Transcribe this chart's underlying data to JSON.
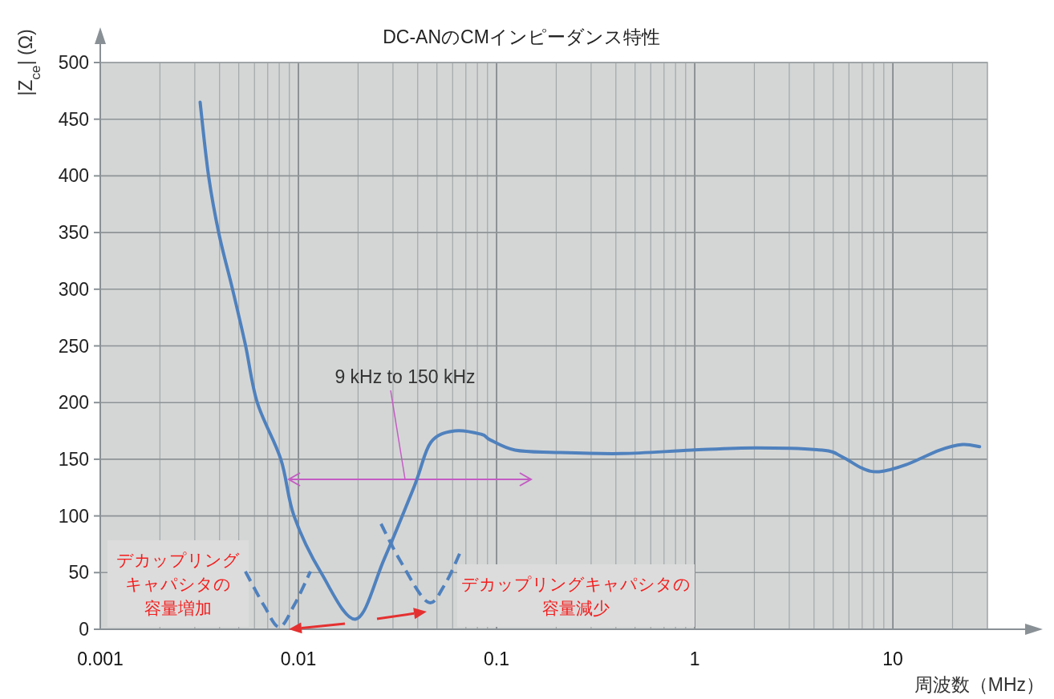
{
  "chart_data": {
    "type": "line",
    "title": "DC-ANのCMインピーダンス特性",
    "xlabel": "周波数（MHz）",
    "ylabel": "|Z$_{ce}$| (Ω)",
    "log": "x",
    "xlim": [
      0.001,
      30
    ],
    "xticks": [
      0.001,
      0.01,
      0.1,
      1,
      10
    ],
    "ylim": [
      0,
      500
    ],
    "yticks": [
      0,
      50,
      100,
      150,
      200,
      250,
      300,
      350,
      400,
      450,
      500
    ],
    "grid": true,
    "line_style": "solid",
    "series": [
      {
        "color": "#4f81bd",
        "x": [
          0.00319,
          0.00352,
          0.00397,
          0.00465,
          0.0054,
          0.0062,
          0.00815,
          0.0095,
          0.013,
          0.0195,
          0.0271,
          0.0386,
          0.0466,
          0.0615,
          0.0838,
          0.093,
          0.124,
          0.198,
          0.427,
          0.964,
          2.03,
          4.4,
          5.56,
          7.02,
          8.53,
          11.6,
          17.2,
          22.5,
          27.4
        ],
        "values": [
          465,
          400,
          349,
          300,
          251,
          200,
          150,
          100,
          50,
          9,
          62,
          127,
          165,
          175,
          172,
          167,
          158,
          156,
          155,
          158,
          160,
          158,
          152,
          142,
          139,
          145,
          158,
          163,
          161
        ]
      },
      {
        "color": "#4f81bd",
        "line_style": "dashed",
        "x": [
          0.0054,
          0.0067,
          0.008,
          0.0095,
          0.0115
        ],
        "values": [
          51,
          21,
          2,
          21,
          51
        ]
      },
      {
        "color": "#4f81bd",
        "line_style": "dashed",
        "x": [
          0.0261,
          0.033,
          0.0449,
          0.0546,
          0.0664
        ],
        "values": [
          93,
          59,
          24,
          39,
          70
        ]
      }
    ],
    "annotations": [
      "9 kHz to 150 kHz",
      "デカップリングキャパシタの容量増加",
      "デカップリングキャパシタの容量減少"
    ]
  }
}
